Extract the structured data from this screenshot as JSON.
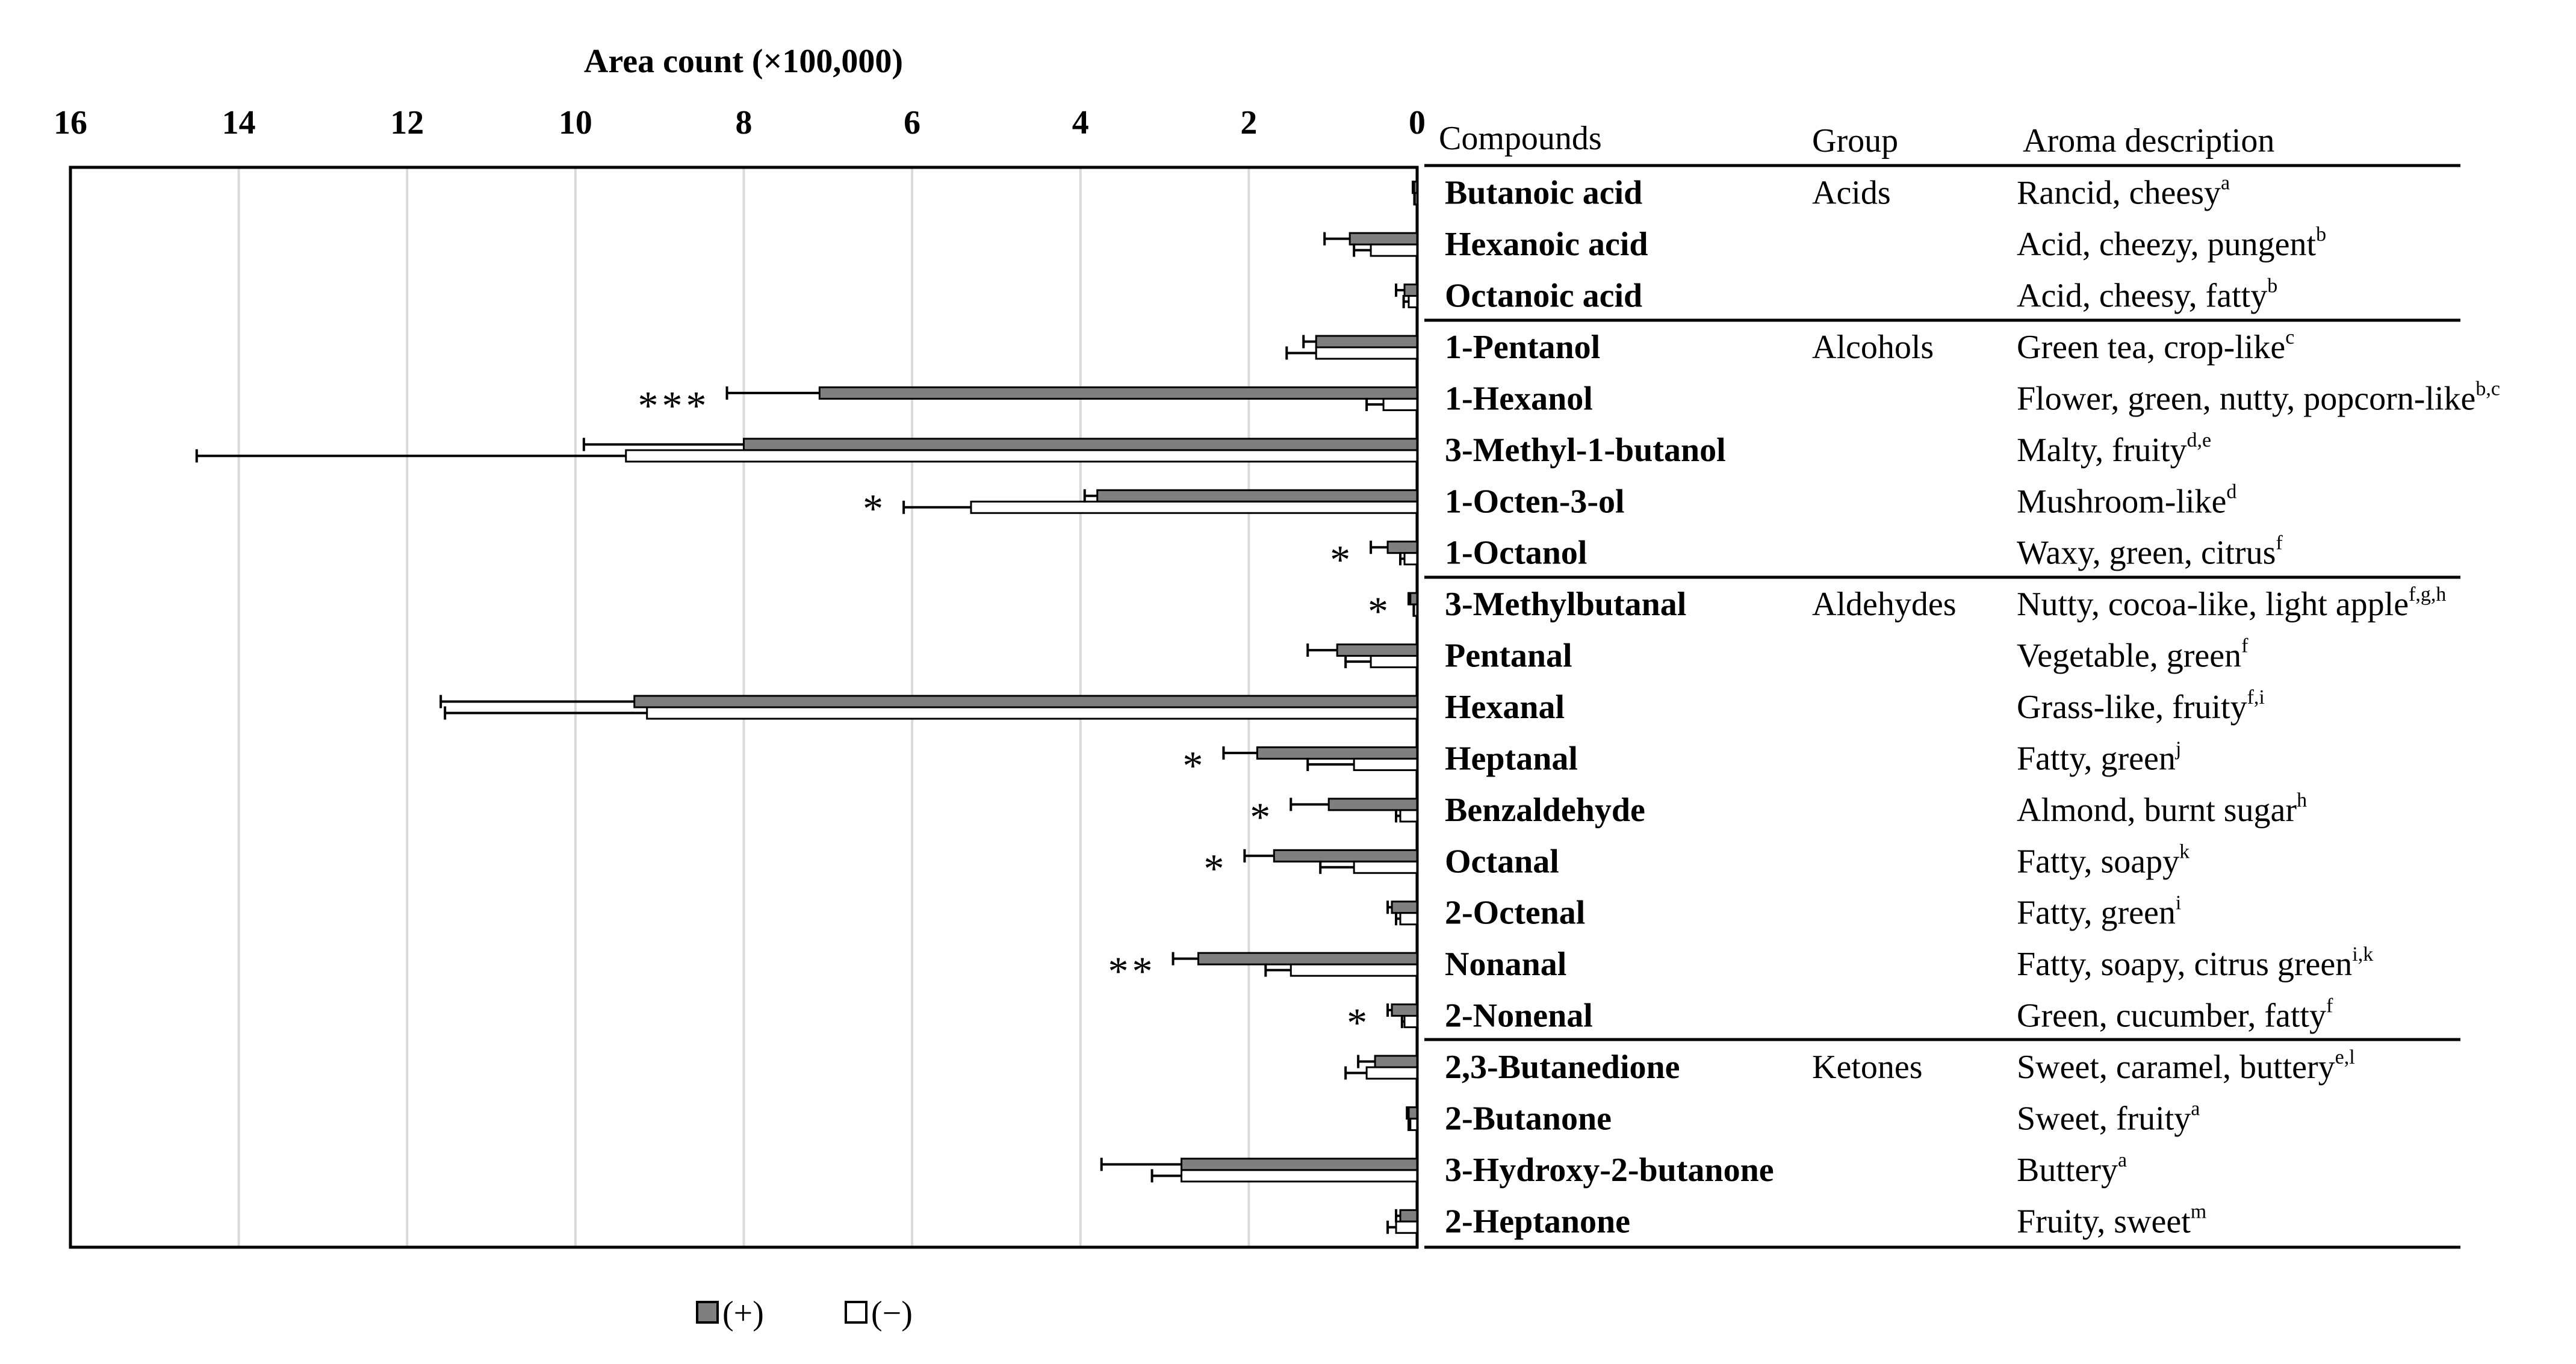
{
  "chart_data": {
    "type": "bar",
    "orientation": "horizontal",
    "axis_title": "Area count (×100,000)",
    "xlim": [
      0,
      16
    ],
    "x_direction": "reversed",
    "ticks": [
      "16",
      "14",
      "12",
      "10",
      "8",
      "6",
      "4",
      "2",
      "0"
    ],
    "grid": true,
    "table_headers": {
      "compounds": "Compounds",
      "group": "Group",
      "aroma": "Aroma description"
    },
    "series": [
      {
        "name": "(+)",
        "color": "#7f7f7f"
      },
      {
        "name": "(−)",
        "color": "#ffffff"
      }
    ],
    "rows": [
      {
        "compound": "Butanoic acid",
        "group": "Acids",
        "aroma": "Rancid, cheesy",
        "ref": "a",
        "plus": 0.03,
        "plus_err": 0.02,
        "minus": 0.02,
        "minus_err": 0.01,
        "sig": ""
      },
      {
        "compound": "Hexanoic acid",
        "group": "",
        "aroma": "Acid, cheezy, pungent",
        "ref": "b",
        "plus": 0.8,
        "plus_err": 0.3,
        "minus": 0.55,
        "minus_err": 0.2,
        "sig": ""
      },
      {
        "compound": "Octanoic acid",
        "group": "",
        "aroma": "Acid, cheesy, fatty",
        "ref": "b",
        "plus": 0.15,
        "plus_err": 0.1,
        "minus": 0.1,
        "minus_err": 0.06,
        "sig": ""
      },
      {
        "compound": "1-Pentanol",
        "group": "Alcohols",
        "aroma": "Green tea, crop-like",
        "ref": "c",
        "plus": 1.2,
        "plus_err": 0.15,
        "minus": 1.2,
        "minus_err": 0.35,
        "sig": ""
      },
      {
        "compound": "1-Hexanol",
        "group": "",
        "aroma": "Flower, green, nutty, popcorn-like",
        "ref": "b,c",
        "plus": 7.1,
        "plus_err": 1.1,
        "minus": 0.4,
        "minus_err": 0.2,
        "sig": "***"
      },
      {
        "compound": "3-Methyl-1-butanol",
        "group": "",
        "aroma": "Malty, fruity",
        "ref": "d,e",
        "plus": 8.0,
        "plus_err": 1.9,
        "minus": 9.4,
        "minus_err": 5.1,
        "sig": ""
      },
      {
        "compound": "1-Octen-3-ol",
        "group": "",
        "aroma": "Mushroom-like",
        "ref": "d",
        "plus": 3.8,
        "plus_err": 0.15,
        "minus": 5.3,
        "minus_err": 0.8,
        "sig": "*"
      },
      {
        "compound": "1-Octanol",
        "group": "",
        "aroma": "Waxy, green, citrus",
        "ref": "f",
        "plus": 0.35,
        "plus_err": 0.2,
        "minus": 0.15,
        "minus_err": 0.05,
        "sig": "*"
      },
      {
        "compound": "3-Methylbutanal",
        "group": "Aldehydes",
        "aroma": "Nutty, cocoa-like, light apple",
        "ref": "f,g,h",
        "plus": 0.08,
        "plus_err": 0.02,
        "minus": 0.03,
        "minus_err": 0.01,
        "sig": "*"
      },
      {
        "compound": "Pentanal",
        "group": "",
        "aroma": "Vegetable, green",
        "ref": "f",
        "plus": 0.95,
        "plus_err": 0.35,
        "minus": 0.55,
        "minus_err": 0.3,
        "sig": ""
      },
      {
        "compound": "Hexanal",
        "group": "",
        "aroma": "Grass-like, fruity",
        "ref": "f,i",
        "plus": 9.3,
        "plus_err": 2.3,
        "minus": 9.15,
        "minus_err": 2.4,
        "sig": ""
      },
      {
        "compound": "Heptanal",
        "group": "",
        "aroma": "Fatty, green",
        "ref": "j",
        "plus": 1.9,
        "plus_err": 0.4,
        "minus": 0.75,
        "minus_err": 0.55,
        "sig": "*"
      },
      {
        "compound": "Benzaldehyde",
        "group": "",
        "aroma": "Almond, burnt sugar",
        "ref": "h",
        "plus": 1.05,
        "plus_err": 0.45,
        "minus": 0.2,
        "minus_err": 0.05,
        "sig": "*"
      },
      {
        "compound": "Octanal",
        "group": "",
        "aroma": "Fatty, soapy",
        "ref": "k",
        "plus": 1.7,
        "plus_err": 0.35,
        "minus": 0.75,
        "minus_err": 0.4,
        "sig": "*"
      },
      {
        "compound": "2-Octenal",
        "group": "",
        "aroma": "Fatty, green",
        "ref": "i",
        "plus": 0.3,
        "plus_err": 0.05,
        "minus": 0.2,
        "minus_err": 0.05,
        "sig": ""
      },
      {
        "compound": "Nonanal",
        "group": "",
        "aroma": "Fatty, soapy, citrus green",
        "ref": "i,k",
        "plus": 2.6,
        "plus_err": 0.3,
        "minus": 1.5,
        "minus_err": 0.3,
        "sig": "**"
      },
      {
        "compound": "2-Nonenal",
        "group": "",
        "aroma": "Green, cucumber, fatty",
        "ref": "f",
        "plus": 0.3,
        "plus_err": 0.05,
        "minus": 0.15,
        "minus_err": 0.03,
        "sig": "*"
      },
      {
        "compound": "2,3-Butanedione",
        "group": "Ketones",
        "aroma": "Sweet, caramel, buttery",
        "ref": "e,l",
        "plus": 0.5,
        "plus_err": 0.2,
        "minus": 0.6,
        "minus_err": 0.25,
        "sig": ""
      },
      {
        "compound": "2-Butanone",
        "group": "",
        "aroma": "Sweet, fruity",
        "ref": "a",
        "plus": 0.1,
        "plus_err": 0.02,
        "minus": 0.08,
        "minus_err": 0.02,
        "sig": ""
      },
      {
        "compound": "3-Hydroxy-2-butanone",
        "group": "",
        "aroma": "Buttery",
        "ref": "a",
        "plus": 2.8,
        "plus_err": 0.95,
        "minus": 2.8,
        "minus_err": 0.35,
        "sig": ""
      },
      {
        "compound": "2-Heptanone",
        "group": "",
        "aroma": "Fruity, sweet",
        "ref": "m",
        "plus": 0.2,
        "plus_err": 0.05,
        "minus": 0.25,
        "minus_err": 0.1,
        "sig": ""
      }
    ]
  }
}
